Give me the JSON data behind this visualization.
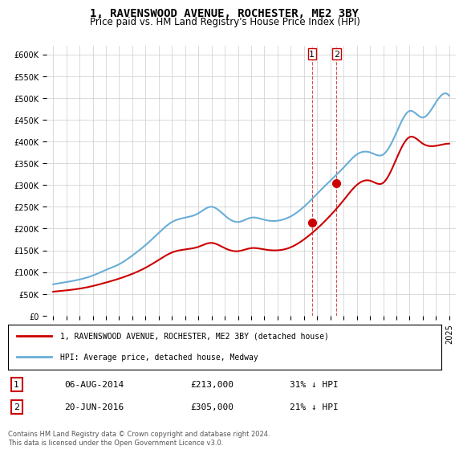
{
  "title": "1, RAVENSWOOD AVENUE, ROCHESTER, ME2 3BY",
  "subtitle": "Price paid vs. HM Land Registry's House Price Index (HPI)",
  "hpi_label": "HPI: Average price, detached house, Medway",
  "price_label": "1, RAVENSWOOD AVENUE, ROCHESTER, ME2 3BY (detached house)",
  "legend_entry1": {
    "num": "1",
    "date": "06-AUG-2014",
    "price": "£213,000",
    "pct": "31% ↓ HPI"
  },
  "legend_entry2": {
    "num": "2",
    "date": "20-JUN-2016",
    "price": "£305,000",
    "pct": "21% ↓ HPI"
  },
  "footer": "Contains HM Land Registry data © Crown copyright and database right 2024.\nThis data is licensed under the Open Government Licence v3.0.",
  "sale1_year": 2014.6,
  "sale1_price": 213000,
  "sale2_year": 2016.47,
  "sale2_price": 305000,
  "hpi_color": "#6aaed6",
  "price_color": "#cc0000",
  "marker_color": "#cc0000",
  "dashed_color": "#cc0000",
  "bg_color": "#ffffff",
  "grid_color": "#cccccc",
  "ylim_min": 0,
  "ylim_max": 620000,
  "xlim_min": 1994.5,
  "xlim_max": 2025.5,
  "yticks": [
    0,
    50000,
    100000,
    150000,
    200000,
    250000,
    300000,
    350000,
    400000,
    450000,
    500000,
    550000,
    600000
  ],
  "xticks": [
    1995,
    1996,
    1997,
    1998,
    1999,
    2000,
    2001,
    2002,
    2003,
    2004,
    2005,
    2006,
    2007,
    2008,
    2009,
    2010,
    2011,
    2012,
    2013,
    2014,
    2015,
    2016,
    2017,
    2018,
    2019,
    2020,
    2021,
    2022,
    2023,
    2024,
    2025
  ]
}
